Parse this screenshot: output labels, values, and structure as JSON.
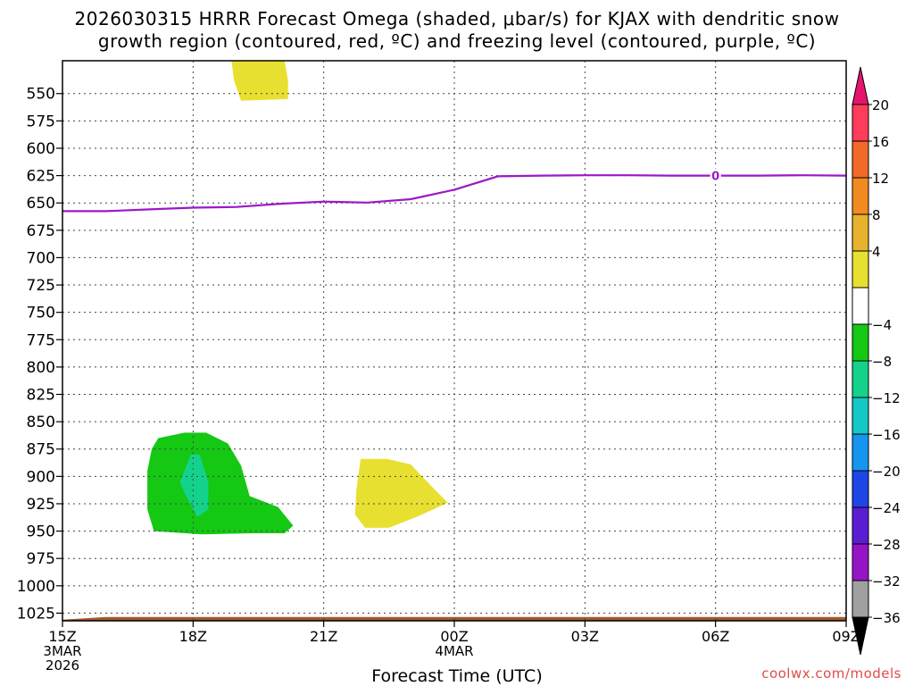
{
  "title_line1": "2026030315 HRRR Forecast Omega (shaded, μbar/s) for KJAX with dendritic snow",
  "title_line2": "growth region (contoured, red, ºC) and freezing level (contoured, purple, ºC)",
  "xlabel": "Forecast Time (UTC)",
  "credit": "coolwx.com/models",
  "chart_data": {
    "type": "heatmap",
    "x_ticks": [
      {
        "hours": 0,
        "label": "15Z",
        "sub": [
          "3MAR",
          "2026"
        ]
      },
      {
        "hours": 3,
        "label": "18Z",
        "sub": []
      },
      {
        "hours": 6,
        "label": "21Z",
        "sub": []
      },
      {
        "hours": 9,
        "label": "00Z",
        "sub": [
          "4MAR"
        ]
      },
      {
        "hours": 12,
        "label": "03Z",
        "sub": []
      },
      {
        "hours": 15,
        "label": "06Z",
        "sub": []
      },
      {
        "hours": 18,
        "label": "09Z",
        "sub": []
      }
    ],
    "y_ticks": [
      550,
      575,
      600,
      625,
      650,
      675,
      700,
      725,
      750,
      775,
      800,
      825,
      850,
      875,
      900,
      925,
      950,
      975,
      1000,
      1025
    ],
    "xlim": [
      0,
      18
    ],
    "ylim": [
      520,
      1032
    ],
    "colorbar": {
      "labels": [
        "20",
        "16",
        "12",
        "8",
        "4",
        "-4",
        "-8",
        "-12",
        "-16",
        "-20",
        "-24",
        "-28",
        "-32",
        "-36"
      ],
      "colors": [
        "#ff3d5a",
        "#f26a28",
        "#f28b1f",
        "#e8b22e",
        "#e8e030",
        "#ffffff",
        "#14c814",
        "#14d28c",
        "#14c8c8",
        "#1496f0",
        "#1e46e6",
        "#5a1ed2",
        "#9614c8",
        "#a0a0a0"
      ],
      "top_arrow_color": "#e6146e",
      "bottom_arrow_color": "#000000"
    },
    "freezing_level": {
      "label": "0",
      "color": "#9b19c8",
      "label_at_hours": 15,
      "points": [
        [
          0,
          657.5
        ],
        [
          1,
          657.5
        ],
        [
          2,
          655.9
        ],
        [
          3,
          654.3
        ],
        [
          4,
          653.7
        ],
        [
          5,
          650.7
        ],
        [
          6,
          648.8
        ],
        [
          7,
          649.7
        ],
        [
          8,
          646.6
        ],
        [
          9,
          637.9
        ],
        [
          10,
          625.7
        ],
        [
          11,
          625
        ],
        [
          12,
          624.7
        ],
        [
          13,
          624.7
        ],
        [
          14,
          625
        ],
        [
          15,
          625
        ],
        [
          16,
          625
        ],
        [
          17,
          624.7
        ],
        [
          18,
          625
        ]
      ]
    },
    "shaded_regions": [
      {
        "value_range": "4 to 8",
        "color": "#e8e030",
        "points": [
          [
            3.88,
            520
          ],
          [
            5.1,
            520
          ],
          [
            5.18,
            538
          ],
          [
            5.18,
            555
          ],
          [
            4.1,
            556.5
          ],
          [
            3.94,
            538
          ]
        ]
      },
      {
        "value_range": "4 to 8",
        "color": "#e8e030",
        "points": [
          [
            6.85,
            884
          ],
          [
            7.45,
            884
          ],
          [
            8.0,
            889
          ],
          [
            8.5,
            910
          ],
          [
            8.85,
            924
          ],
          [
            8.2,
            936
          ],
          [
            7.5,
            947
          ],
          [
            6.95,
            947
          ],
          [
            6.72,
            935
          ],
          [
            6.75,
            912
          ]
        ]
      },
      {
        "value_range": "-8 to -4",
        "color": "#14c814",
        "points": [
          [
            2.2,
            865
          ],
          [
            2.8,
            860
          ],
          [
            3.3,
            860
          ],
          [
            3.8,
            870
          ],
          [
            4.1,
            890
          ],
          [
            4.3,
            918
          ],
          [
            4.95,
            928
          ],
          [
            5.3,
            945
          ],
          [
            5.1,
            952
          ],
          [
            4.4,
            952
          ],
          [
            3.2,
            953
          ],
          [
            2.1,
            950
          ],
          [
            1.95,
            930
          ],
          [
            1.95,
            895
          ],
          [
            2.05,
            875
          ]
        ]
      },
      {
        "value_range": "-12 to -8",
        "color": "#14d28c",
        "points": [
          [
            2.95,
            880
          ],
          [
            3.15,
            880
          ],
          [
            3.35,
            905
          ],
          [
            3.35,
            930
          ],
          [
            3.1,
            937
          ],
          [
            2.8,
            915
          ],
          [
            2.7,
            905
          ],
          [
            2.8,
            895
          ]
        ]
      }
    ],
    "ground_level": [
      [
        0,
        1031
      ],
      [
        1,
        1028.5
      ],
      [
        18,
        1028.5
      ]
    ],
    "ground_color": "#a05a2c"
  }
}
